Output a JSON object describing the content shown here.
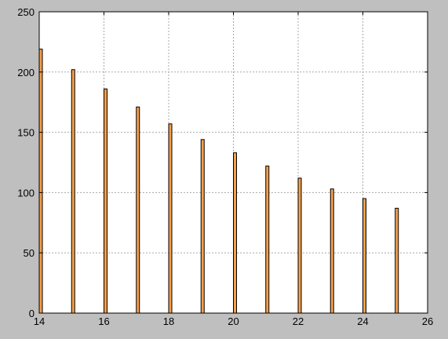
{
  "chart_data": {
    "type": "bar",
    "title": "",
    "xlabel": "",
    "ylabel": "",
    "x": [
      14,
      15,
      16,
      17,
      18,
      19,
      20,
      21,
      22,
      23,
      24,
      25
    ],
    "values": [
      219,
      202,
      186,
      171,
      157,
      144,
      133,
      122,
      112,
      103,
      95,
      87
    ],
    "xlim": [
      14,
      26
    ],
    "ylim": [
      0,
      250
    ],
    "xticks": [
      "14",
      "16",
      "18",
      "20",
      "22",
      "24",
      "26"
    ],
    "yticks": [
      "0",
      "50",
      "100",
      "150",
      "200",
      "250"
    ],
    "grid": true,
    "bar_color": "#f5a04a",
    "background_color": "#bfbfbf"
  }
}
